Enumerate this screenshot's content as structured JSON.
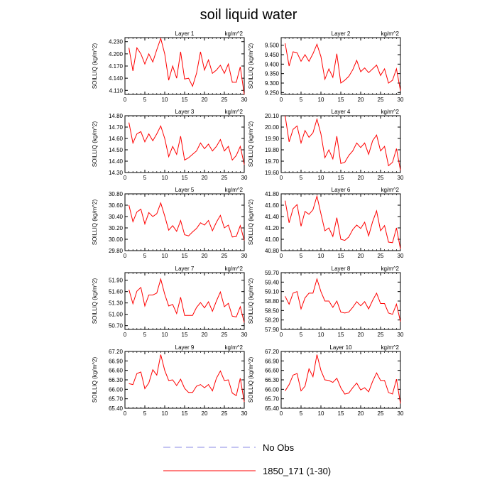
{
  "figure_title": "soil liquid water",
  "legend": [
    {
      "label": "No Obs",
      "color": "#8a8ae6",
      "dash": true
    },
    {
      "label": "1850_171 (1-30)",
      "color": "#ff0000",
      "dash": false
    }
  ],
  "chart_data": [
    {
      "type": "line",
      "title": "Layer 1",
      "units": "kg/m^2",
      "ylabel": "SOILLIQ  (kg/m^2)",
      "xlim": [
        0,
        30
      ],
      "ylim": [
        4.1,
        4.24
      ],
      "xticks": [
        0,
        5,
        10,
        15,
        20,
        25,
        30
      ],
      "yticks": [
        4.11,
        4.14,
        4.17,
        4.2,
        4.23
      ],
      "ytick_labels": [
        "4.110",
        "4.140",
        "4.170",
        "4.200",
        "4.230"
      ],
      "series": [
        {
          "values": [
            4.215,
            4.158,
            4.215,
            4.2,
            4.175,
            4.2,
            4.18,
            4.21,
            4.238,
            4.2,
            4.135,
            4.17,
            4.14,
            4.205,
            4.138,
            4.14,
            4.12,
            4.152,
            4.205,
            4.16,
            4.185,
            4.152,
            4.16,
            4.172,
            4.152,
            4.175,
            4.13,
            4.13,
            4.168,
            4.1
          ]
        }
      ]
    },
    {
      "type": "line",
      "title": "Layer 2",
      "units": "kg/m^2",
      "ylabel": "SOILLIQ  (kg/m^2)",
      "xlim": [
        0,
        30
      ],
      "ylim": [
        9.24,
        9.54
      ],
      "xticks": [
        0,
        5,
        10,
        15,
        20,
        25,
        30
      ],
      "yticks": [
        9.25,
        9.3,
        9.35,
        9.4,
        9.45,
        9.5
      ],
      "ytick_labels": [
        "9.250",
        "9.300",
        "9.350",
        "9.400",
        "9.450",
        "9.500"
      ],
      "series": [
        {
          "values": [
            9.51,
            9.39,
            9.465,
            9.46,
            9.415,
            9.45,
            9.415,
            9.455,
            9.505,
            9.44,
            9.32,
            9.375,
            9.33,
            9.455,
            9.3,
            9.315,
            9.335,
            9.37,
            9.42,
            9.36,
            9.38,
            9.355,
            9.375,
            9.395,
            9.34,
            9.375,
            9.3,
            9.315,
            9.375,
            9.26
          ]
        }
      ]
    },
    {
      "type": "line",
      "title": "Layer 3",
      "units": "kg/m^2",
      "ylabel": "SOILLIQ  (kg/m^2)",
      "xlim": [
        0,
        30
      ],
      "ylim": [
        14.3,
        14.8
      ],
      "xticks": [
        0,
        5,
        10,
        15,
        20,
        25,
        30
      ],
      "yticks": [
        14.3,
        14.4,
        14.5,
        14.6,
        14.7,
        14.8
      ],
      "ytick_labels": [
        "14.30",
        "14.40",
        "14.50",
        "14.60",
        "14.70",
        "14.80"
      ],
      "series": [
        {
          "values": [
            14.74,
            14.56,
            14.64,
            14.66,
            14.57,
            14.64,
            14.58,
            14.64,
            14.71,
            14.6,
            14.44,
            14.53,
            14.46,
            14.62,
            14.41,
            14.43,
            14.46,
            14.49,
            14.56,
            14.51,
            14.55,
            14.49,
            14.53,
            14.59,
            14.49,
            14.53,
            14.41,
            14.45,
            14.53,
            14.37
          ]
        }
      ]
    },
    {
      "type": "line",
      "title": "Layer 4",
      "units": "kg/m^2",
      "ylabel": "SOILLIQ  (kg/m^2)",
      "xlim": [
        0,
        30
      ],
      "ylim": [
        19.6,
        20.1
      ],
      "xticks": [
        0,
        5,
        10,
        15,
        20,
        25,
        30
      ],
      "yticks": [
        19.6,
        19.7,
        19.8,
        19.9,
        20.0,
        20.1
      ],
      "ytick_labels": [
        "19.60",
        "19.70",
        "19.80",
        "19.90",
        "20.00",
        "20.10"
      ],
      "series": [
        {
          "values": [
            20.1,
            19.87,
            19.98,
            20.01,
            19.86,
            19.97,
            19.91,
            19.95,
            20.07,
            19.94,
            19.73,
            19.8,
            19.72,
            19.92,
            19.68,
            19.69,
            19.75,
            19.79,
            19.86,
            19.82,
            19.86,
            19.76,
            19.88,
            19.93,
            19.79,
            19.83,
            19.66,
            19.69,
            19.81,
            19.62
          ]
        }
      ]
    },
    {
      "type": "line",
      "title": "Layer 5",
      "units": "kg/m^2",
      "ylabel": "SOILLIQ  (kg/m^2)",
      "xlim": [
        0,
        30
      ],
      "ylim": [
        29.8,
        30.8
      ],
      "xticks": [
        0,
        5,
        10,
        15,
        20,
        25,
        30
      ],
      "yticks": [
        29.8,
        30.0,
        30.2,
        30.4,
        30.6,
        30.8
      ],
      "ytick_labels": [
        "29.80",
        "30.00",
        "30.20",
        "30.40",
        "30.60",
        "30.80"
      ],
      "series": [
        {
          "values": [
            30.6,
            30.31,
            30.48,
            30.53,
            30.27,
            30.47,
            30.4,
            30.45,
            30.64,
            30.41,
            30.16,
            30.24,
            30.14,
            30.33,
            30.08,
            30.06,
            30.13,
            30.19,
            30.29,
            30.25,
            30.33,
            30.15,
            30.3,
            30.42,
            30.2,
            30.25,
            30.04,
            30.05,
            30.24,
            29.98
          ]
        }
      ]
    },
    {
      "type": "line",
      "title": "Layer 6",
      "units": "kg/m^2",
      "ylabel": "SOILLIQ  (kg/m^2)",
      "xlim": [
        0,
        30
      ],
      "ylim": [
        40.8,
        41.8
      ],
      "xticks": [
        0,
        5,
        10,
        15,
        20,
        25,
        30
      ],
      "yticks": [
        40.8,
        41.0,
        41.2,
        41.4,
        41.6,
        41.8
      ],
      "ytick_labels": [
        "40.80",
        "41.00",
        "41.20",
        "41.40",
        "41.60",
        "41.80"
      ],
      "series": [
        {
          "values": [
            41.68,
            41.29,
            41.54,
            41.61,
            41.23,
            41.49,
            41.44,
            41.52,
            41.76,
            41.45,
            41.15,
            41.2,
            41.05,
            41.38,
            41.0,
            40.98,
            41.04,
            41.17,
            41.25,
            41.19,
            41.3,
            41.06,
            41.31,
            41.5,
            41.15,
            41.24,
            40.95,
            40.94,
            41.2,
            40.83
          ]
        }
      ]
    },
    {
      "type": "line",
      "title": "Layer 7",
      "units": "kg/m^2",
      "ylabel": "SOILLIQ  (kg/m^2)",
      "xlim": [
        0,
        30
      ],
      "ylim": [
        50.6,
        52.1
      ],
      "xticks": [
        0,
        5,
        10,
        15,
        20,
        25,
        30
      ],
      "yticks": [
        50.7,
        51.0,
        51.3,
        51.6,
        51.9
      ],
      "ytick_labels": [
        "50.70",
        "51.00",
        "51.30",
        "51.60",
        "51.90"
      ],
      "series": [
        {
          "values": [
            51.65,
            51.28,
            51.61,
            51.71,
            51.22,
            51.51,
            51.51,
            51.56,
            51.93,
            51.53,
            51.22,
            51.26,
            51.02,
            51.45,
            50.97,
            50.97,
            50.97,
            51.18,
            51.31,
            51.17,
            51.33,
            51.08,
            51.35,
            51.59,
            51.2,
            51.29,
            50.95,
            50.93,
            51.2,
            50.78
          ]
        }
      ]
    },
    {
      "type": "line",
      "title": "Layer 8",
      "units": "kg/m^2",
      "ylabel": "SOILLIQ  (kg/m^2)",
      "xlim": [
        0,
        30
      ],
      "ylim": [
        57.9,
        59.7
      ],
      "xticks": [
        0,
        5,
        10,
        15,
        20,
        25,
        30
      ],
      "yticks": [
        57.9,
        58.2,
        58.5,
        58.8,
        59.1,
        59.4,
        59.7
      ],
      "ytick_labels": [
        "57.90",
        "58.20",
        "58.50",
        "58.80",
        "59.10",
        "59.40",
        "59.70"
      ],
      "series": [
        {
          "values": [
            58.95,
            58.7,
            59.05,
            59.1,
            58.55,
            58.9,
            59.05,
            59.05,
            59.5,
            59.1,
            58.8,
            58.8,
            58.6,
            58.8,
            58.45,
            58.42,
            58.45,
            58.6,
            58.78,
            58.65,
            58.78,
            58.55,
            58.82,
            59.05,
            58.72,
            58.72,
            58.42,
            58.38,
            58.7,
            58.15
          ]
        }
      ]
    },
    {
      "type": "line",
      "title": "Layer 9",
      "units": "kg/m^2",
      "ylabel": "SOILLIQ  (kg/m^2)",
      "xlim": [
        0,
        30
      ],
      "ylim": [
        65.4,
        67.2
      ],
      "xticks": [
        0,
        5,
        10,
        15,
        20,
        25,
        30
      ],
      "yticks": [
        65.4,
        65.7,
        66.0,
        66.3,
        66.6,
        66.9,
        67.2
      ],
      "ytick_labels": [
        "65.40",
        "65.70",
        "66.00",
        "66.30",
        "66.60",
        "66.90",
        "67.20"
      ],
      "series": [
        {
          "values": [
            66.18,
            66.15,
            66.5,
            66.55,
            66.02,
            66.2,
            66.62,
            66.45,
            67.1,
            66.6,
            66.28,
            66.3,
            66.12,
            66.32,
            66.03,
            65.9,
            65.9,
            66.1,
            66.15,
            66.05,
            66.15,
            65.95,
            66.35,
            66.58,
            66.28,
            66.3,
            65.88,
            65.8,
            66.35,
            65.6
          ]
        }
      ]
    },
    {
      "type": "line",
      "title": "Layer 10",
      "units": "kg/m^2",
      "ylabel": "SOILLIQ  (kg/m^2)",
      "xlim": [
        0,
        30
      ],
      "ylim": [
        65.4,
        67.2
      ],
      "xticks": [
        0,
        5,
        10,
        15,
        20,
        25,
        30
      ],
      "yticks": [
        65.4,
        65.7,
        66.0,
        66.3,
        66.6,
        66.9,
        67.2
      ],
      "ytick_labels": [
        "65.40",
        "65.70",
        "66.00",
        "66.30",
        "66.60",
        "66.90",
        "67.20"
      ],
      "series": [
        {
          "values": [
            65.95,
            66.15,
            66.45,
            66.5,
            65.95,
            66.1,
            66.65,
            66.4,
            67.1,
            66.6,
            66.3,
            66.28,
            66.22,
            66.35,
            66.05,
            65.85,
            65.88,
            66.05,
            66.2,
            65.98,
            66.05,
            65.92,
            66.25,
            66.52,
            66.28,
            66.28,
            65.9,
            65.85,
            66.32,
            65.55
          ]
        }
      ]
    }
  ]
}
